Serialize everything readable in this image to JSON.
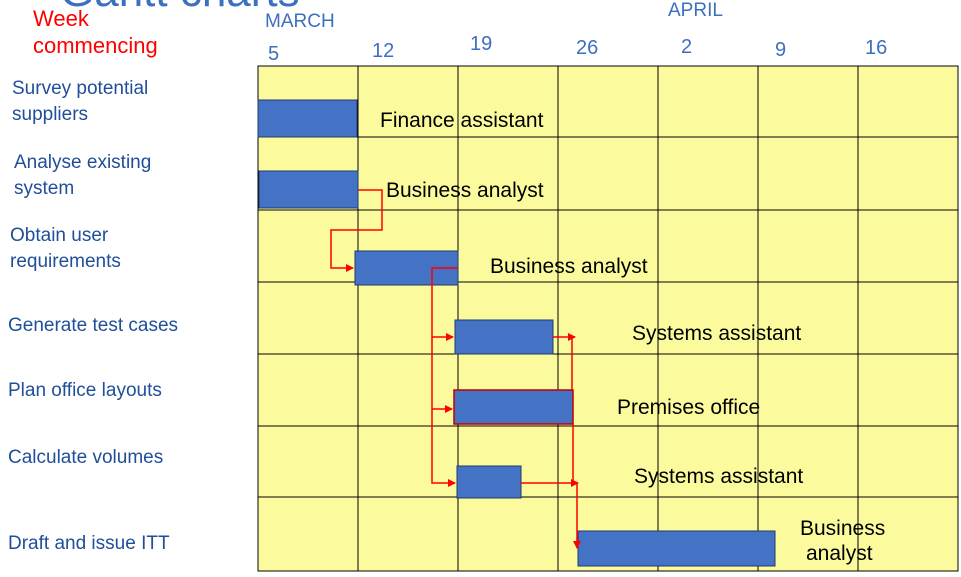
{
  "header": {
    "title_fragment": "Gantt charts",
    "week_label": [
      "Week",
      "commencing"
    ],
    "months": [
      "MARCH",
      "APRIL"
    ],
    "week_dates": [
      "5",
      "12",
      "19",
      "26",
      "2",
      "9",
      "16"
    ]
  },
  "tasks": [
    {
      "name": [
        "Survey potential",
        " suppliers"
      ],
      "resource": [
        "Finance assistant"
      ],
      "start": "5",
      "weeks": 1
    },
    {
      "name": [
        "Analyse existing",
        "system"
      ],
      "resource": [
        "Business analyst"
      ],
      "start": "5",
      "weeks": 1
    },
    {
      "name": [
        "Obtain user",
        "requirements"
      ],
      "resource": [
        "Business analyst"
      ],
      "start": "12",
      "weeks": 1
    },
    {
      "name": [
        "Generate test cases"
      ],
      "resource": [
        "Systems assistant"
      ],
      "start": "19",
      "weeks": 1
    },
    {
      "name": [
        "Plan office layouts"
      ],
      "resource": [
        "Premises office"
      ],
      "start": "19",
      "weeks": 1.2
    },
    {
      "name": [
        "Calculate volumes"
      ],
      "resource": [
        "Systems assistant"
      ],
      "start": "19",
      "weeks": 0.65
    },
    {
      "name": [
        "Draft and issue ITT"
      ],
      "resource": [
        "Business",
        "analyst"
      ],
      "start": "26",
      "weeks": 2
    }
  ],
  "colors": {
    "grid_fill": "#fbfb9e",
    "bar": "#4472c4",
    "arrow": "#ff0000",
    "header_text": "#3d6fc1",
    "task_text": "#1f4e9a"
  }
}
